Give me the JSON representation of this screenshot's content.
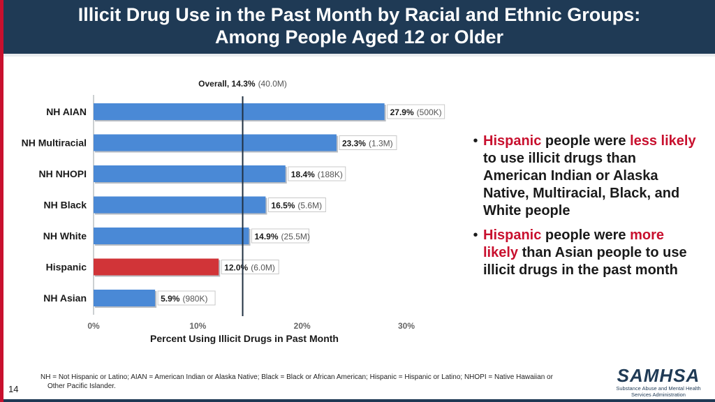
{
  "header": {
    "title_line1": "Illicit Drug Use in the Past Month by Racial and Ethnic Groups:",
    "title_line2": "Among People Aged 12 or Older"
  },
  "chart_data": {
    "type": "bar",
    "orientation": "horizontal",
    "categories": [
      "NH AIAN",
      "NH Multiracial",
      "NH NHOPI",
      "NH Black",
      "NH White",
      "Hispanic",
      "NH Asian"
    ],
    "values": [
      27.9,
      23.3,
      18.4,
      16.5,
      14.9,
      12.0,
      5.9
    ],
    "counts": [
      "500K",
      "1.3M",
      "188K",
      "5.6M",
      "25.5M",
      "6.0M",
      "980K"
    ],
    "value_labels": [
      "27.9%",
      "23.3%",
      "18.4%",
      "16.5%",
      "14.9%",
      "12.0%",
      "5.9%"
    ],
    "count_labels": [
      "(500K)",
      "(1.3M)",
      "(188K)",
      "(5.6M)",
      "(25.5M)",
      "(6.0M)",
      "(980K)"
    ],
    "highlight": "Hispanic",
    "bar_color": "#4a89d6",
    "highlight_color": "#d13438",
    "xlim": [
      0,
      30
    ],
    "xticks": [
      0,
      10,
      20,
      30
    ],
    "xtick_labels": [
      "0%",
      "10%",
      "20%",
      "30%"
    ],
    "xlabel": "Percent Using Illicit Drugs in Past Month",
    "reference_line": {
      "value": 14.3,
      "label": "Overall, 14.3%",
      "count_label": "(40.0M)"
    }
  },
  "bullets": [
    {
      "parts": [
        {
          "text": "Hispanic",
          "red": true
        },
        {
          "text": " people were ",
          "red": false
        },
        {
          "text": "less likely",
          "red": true
        },
        {
          "text": " to use illicit drugs than American Indian or Alaska Native, Multiracial, Black, and White people",
          "red": false
        }
      ]
    },
    {
      "parts": [
        {
          "text": "Hispanic",
          "red": true
        },
        {
          "text": " people were ",
          "red": false
        },
        {
          "text": "more likely",
          "red": true
        },
        {
          "text": " than Asian people to use illicit drugs in the past month",
          "red": false
        }
      ]
    }
  ],
  "footnote": {
    "line1": "NH = Not Hispanic or Latino; AIAN = American Indian or Alaska Native; Black = Black or African American; Hispanic = Hispanic or Latino; NHOPI = Native Hawaiian or",
    "line2": "Other Pacific Islander."
  },
  "page_number": "14",
  "logo": {
    "mark": "SAMHSA",
    "sub_line1": "Substance Abuse and Mental Health",
    "sub_line2": "Services Administration"
  }
}
